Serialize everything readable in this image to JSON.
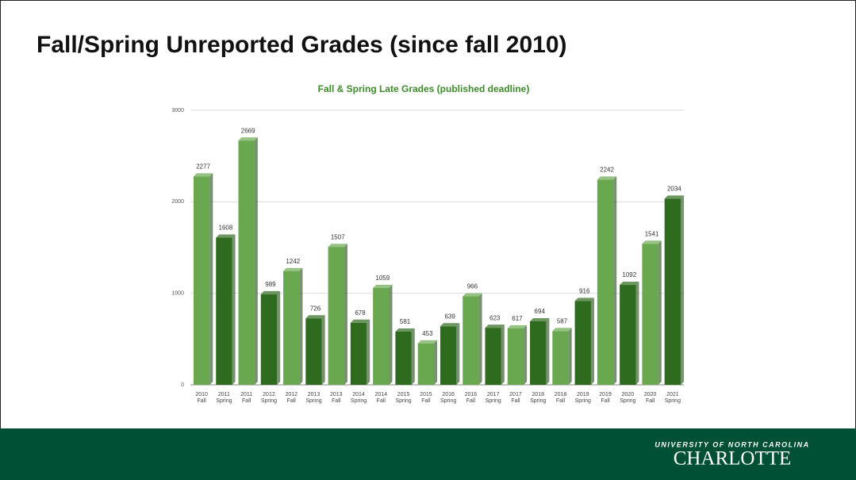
{
  "slide_title": "Fall/Spring Unreported Grades (since fall 2010)",
  "logo": {
    "top": "UNIVERSITY OF NORTH CAROLINA",
    "name": "CHARLOTTE"
  },
  "chart_data": {
    "type": "bar",
    "title": "Fall & Spring Late Grades (published deadline)",
    "categories": [
      [
        "2010",
        "Fall"
      ],
      [
        "2011",
        "Spring"
      ],
      [
        "2011",
        "Fall"
      ],
      [
        "2012",
        "Spring"
      ],
      [
        "2012",
        "Fall"
      ],
      [
        "2013",
        "Spring"
      ],
      [
        "2013",
        "Fall"
      ],
      [
        "2014",
        "Spring"
      ],
      [
        "2014",
        "Fall"
      ],
      [
        "2015",
        "Spring"
      ],
      [
        "2015",
        "Fall"
      ],
      [
        "2016",
        "Spring"
      ],
      [
        "2016",
        "Fall"
      ],
      [
        "2017",
        "Spring"
      ],
      [
        "2017",
        "Fall"
      ],
      [
        "2018",
        "Spring"
      ],
      [
        "2018",
        "Fall"
      ],
      [
        "2019",
        "Spring"
      ],
      [
        "2019",
        "Fall"
      ],
      [
        "2020",
        "Spring"
      ],
      [
        "2020",
        "Fall"
      ],
      [
        "2021",
        "Spring"
      ]
    ],
    "values": [
      2277,
      1608,
      2669,
      989,
      1242,
      726,
      1507,
      678,
      1059,
      581,
      453,
      639,
      966,
      623,
      617,
      694,
      587,
      916,
      2242,
      1092,
      1541,
      2034
    ],
    "term_colors": {
      "Fall": "#6aa84f",
      "Spring": "#2f6b1e"
    },
    "ylim": [
      0,
      3000
    ],
    "yticks": [
      0,
      1000,
      2000,
      3000
    ],
    "grid": true
  }
}
